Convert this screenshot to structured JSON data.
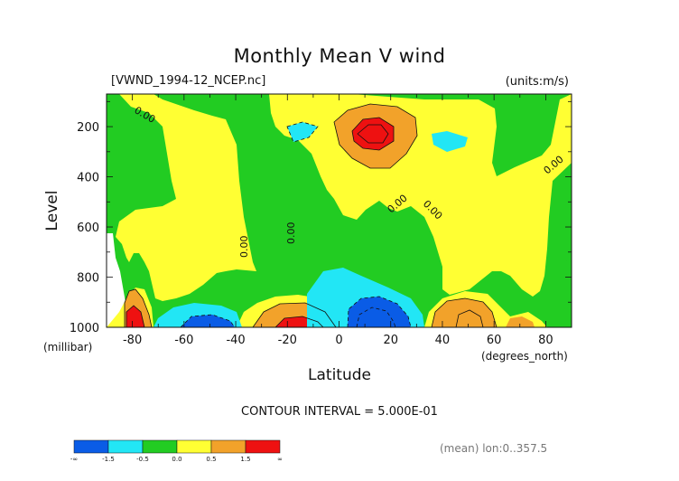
{
  "chart_data": {
    "type": "heatmap",
    "title": "Monthly Mean V wind",
    "file_label": "[VWND_1994-12_NCEP.nc]",
    "units_label": "(units:m/s)",
    "xlabel": "Latitude",
    "x_units": "(degrees_north)",
    "ylabel": "Level",
    "y_units": "(millibar)",
    "xlim": [
      -90,
      90
    ],
    "ylim": [
      1000,
      70
    ],
    "x_ticks": [
      "-80",
      "-60",
      "-40",
      "-20",
      "0",
      "20",
      "40",
      "60",
      "80"
    ],
    "y_ticks": [
      "200",
      "400",
      "600",
      "800",
      "1000"
    ],
    "contour_interval_label": "CONTOUR INTERVAL = 5.000E-01",
    "contour_labels": [
      "0.00",
      "0.00",
      "0.00",
      "0.00",
      "0.00",
      "0.00"
    ],
    "footer_note": "(mean) lon:0..357.5",
    "colorbar": {
      "colors": [
        "#0a5ce6",
        "#22e6f5",
        "#22cc22",
        "#ffff33",
        "#f2a22a",
        "#ee1111"
      ],
      "labels": [
        "-∞",
        "-1.5",
        "-0.5",
        "0.0",
        "0.5",
        "1.5",
        "∞"
      ]
    }
  }
}
